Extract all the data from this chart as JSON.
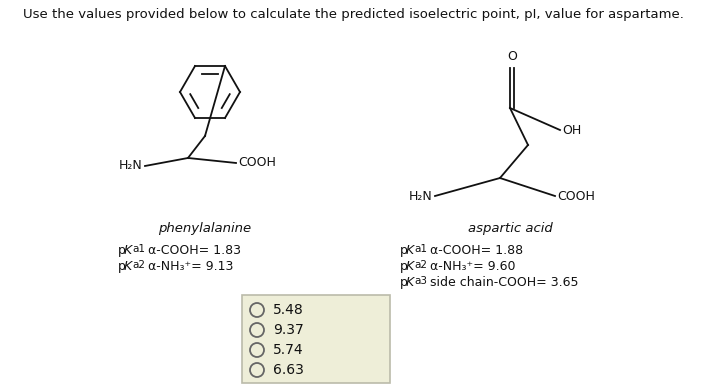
{
  "title": "Use the values provided below to calculate the predicted isoelectric point, pI, value for aspartame.",
  "title_fontsize": 9.5,
  "background_color": "#ffffff",
  "phenylalanine_label": "phenylalanine",
  "phenylalanine_pka1_pre": "p",
  "phenylalanine_pka1_K": "K",
  "phenylalanine_pka1_post": "a1 α-COOH= 1.83",
  "phenylalanine_pka2_pre": "p",
  "phenylalanine_pka2_K": "K",
  "phenylalanine_pka2_post": "a2 α-NH3+= 9.13",
  "aspartic_label": "aspartic acid",
  "aspartic_pka1_post": "a1 α-COOH= 1.88",
  "aspartic_pka2_post": "a2 α-NH3+= 9.60",
  "aspartic_pka3_post": "a3 side chain-COOH= 3.65",
  "choices": [
    "5.48",
    "9.37",
    "5.74",
    "6.63"
  ],
  "box_facecolor": "#eeeed8",
  "box_edgecolor": "#bbbbaa",
  "text_color": "#111111",
  "line_color": "#111111"
}
